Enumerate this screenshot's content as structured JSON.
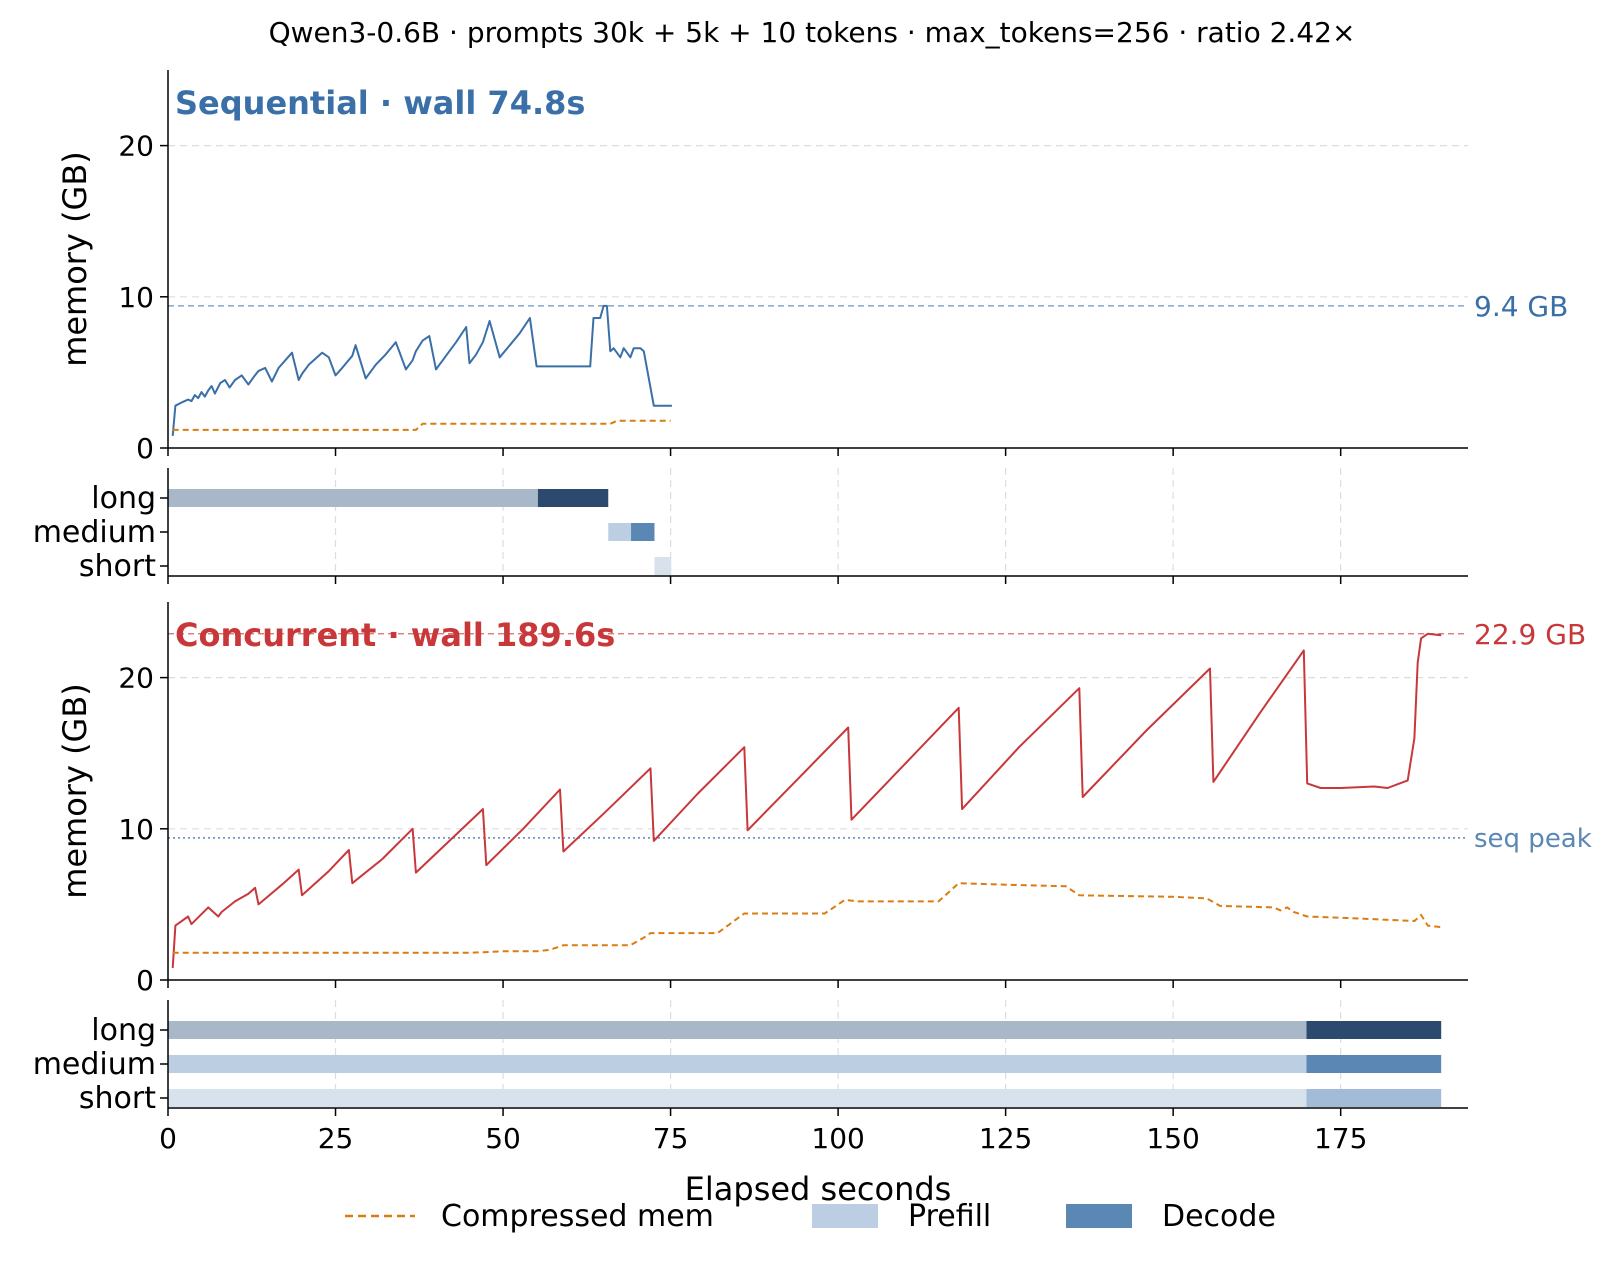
{
  "figure": {
    "title": "Qwen3-0.6B  ·  prompts 30k + 5k + 10 tokens  ·  max_tokens=256  ·  ratio 2.42×",
    "xlabel": "Elapsed seconds",
    "x_ticks": [
      0,
      25,
      50,
      75,
      100,
      125,
      150,
      175
    ],
    "xlim": [
      0,
      194
    ],
    "legend": [
      {
        "label": "Compressed mem",
        "style": "dashed",
        "color": "#d97d10"
      },
      {
        "label": "Prefill",
        "style": "patch",
        "color": "#bccfe2"
      },
      {
        "label": "Decode",
        "style": "patch",
        "color": "#5b87b5"
      }
    ],
    "colors": {
      "seq": "#3a6fa8",
      "conc": "#c8383a",
      "compressed": "#d97d10",
      "grid": "#dddddd",
      "peak_ref": "#5b87b5"
    }
  },
  "chart_data": [
    {
      "type": "line",
      "id": "sequential",
      "title": "Sequential  ·  wall 74.8s",
      "ylabel": "memory (GB)",
      "ylim": [
        0,
        25
      ],
      "y_ticks": [
        0,
        10,
        20
      ],
      "hline": {
        "value": 9.4,
        "label": "9.4 GB",
        "style": "dashed"
      },
      "series": [
        {
          "name": "",
          "role": "memory",
          "x": [
            0.7,
            1.1,
            2,
            3,
            3.5,
            4,
            4.5,
            5,
            5.5,
            6,
            6.5,
            7,
            7.8,
            8.5,
            9.2,
            10,
            11,
            12,
            12.8,
            13.5,
            14.5,
            15.5,
            16.5,
            17.5,
            18.5,
            19.5,
            20,
            21,
            22,
            23,
            24,
            25,
            26,
            27.5,
            28,
            29.5,
            31,
            32.5,
            34,
            35.5,
            36.5,
            37,
            38,
            39,
            40,
            41,
            42,
            43,
            44.5,
            45,
            46,
            47,
            48,
            49.5,
            51,
            52.5,
            54,
            55,
            55.5,
            56,
            57.5,
            59,
            60,
            61,
            62,
            63,
            63.5,
            64,
            64.5,
            65,
            65.5,
            66,
            66.5,
            67.5,
            68,
            69,
            69.5,
            70.5,
            71,
            72.5,
            73,
            73.8,
            75.2
          ],
          "y": [
            0.8,
            2.8,
            3.0,
            3.2,
            3.1,
            3.5,
            3.3,
            3.7,
            3.4,
            3.8,
            4.1,
            3.6,
            4.3,
            4.5,
            4.0,
            4.5,
            4.8,
            4.2,
            4.7,
            5.1,
            5.3,
            4.4,
            5.3,
            5.8,
            6.3,
            4.5,
            4.9,
            5.5,
            5.9,
            6.3,
            6.0,
            4.8,
            5.3,
            6.1,
            6.8,
            4.6,
            5.5,
            6.2,
            7.0,
            5.2,
            5.8,
            6.4,
            7.1,
            7.4,
            5.2,
            5.8,
            6.4,
            7.0,
            8.0,
            5.6,
            6.2,
            7.0,
            8.4,
            6.0,
            6.8,
            7.6,
            8.6,
            5.4,
            5.4,
            5.4,
            5.4,
            5.4,
            5.4,
            5.4,
            5.4,
            5.4,
            8.6,
            8.6,
            8.6,
            9.4,
            9.4,
            6.4,
            6.6,
            6.0,
            6.6,
            6.0,
            6.6,
            6.6,
            6.4,
            2.8,
            2.8,
            2.8,
            2.8
          ]
        },
        {
          "name": "",
          "role": "compressed",
          "x": [
            0.7,
            10,
            20,
            30,
            37,
            38,
            50,
            60,
            66,
            67,
            75
          ],
          "y": [
            1.2,
            1.2,
            1.2,
            1.2,
            1.2,
            1.6,
            1.6,
            1.6,
            1.6,
            1.8,
            1.8
          ]
        }
      ]
    },
    {
      "type": "bar",
      "id": "sequential_timeline",
      "categories": [
        "long",
        "medium",
        "short"
      ],
      "segments": [
        {
          "row": "long",
          "phase": "prefill",
          "start": 0,
          "end": 55.2
        },
        {
          "row": "long",
          "phase": "decode",
          "start": 55.2,
          "end": 65.7
        },
        {
          "row": "medium",
          "phase": "prefill",
          "start": 65.7,
          "end": 69.1
        },
        {
          "row": "medium",
          "phase": "decode",
          "start": 69.1,
          "end": 72.6
        },
        {
          "row": "short",
          "phase": "prefill",
          "start": 72.6,
          "end": 75.1
        }
      ]
    },
    {
      "type": "line",
      "id": "concurrent",
      "title": "Concurrent  ·  wall 189.6s",
      "ylabel": "memory (GB)",
      "ylim": [
        0,
        25
      ],
      "y_ticks": [
        0,
        10,
        20
      ],
      "hline": {
        "value": 22.9,
        "label": "22.9 GB",
        "style": "dashed"
      },
      "ref_line": {
        "value": 9.4,
        "label": "seq peak",
        "style": "dotted"
      },
      "series": [
        {
          "name": "",
          "role": "memory",
          "x": [
            0.7,
            1.1,
            3,
            3.5,
            6,
            7.5,
            8,
            10,
            12,
            13,
            13.5,
            17,
            19.5,
            20,
            24,
            27,
            27.5,
            32,
            36.5,
            37,
            42,
            47,
            47.5,
            53,
            58.5,
            59,
            65,
            72,
            72.5,
            79,
            86,
            86.5,
            94,
            101.5,
            102,
            110,
            118,
            118.5,
            127,
            136,
            136.5,
            146,
            155.5,
            156,
            163,
            169.5,
            170,
            172,
            175,
            180,
            182,
            185,
            186,
            186.5,
            187,
            188,
            190
          ],
          "y": [
            0.8,
            3.6,
            4.2,
            3.7,
            4.8,
            4.2,
            4.5,
            5.2,
            5.7,
            6.1,
            5.0,
            6.3,
            7.3,
            5.6,
            7.2,
            8.6,
            6.4,
            8.0,
            10.0,
            7.1,
            9.2,
            11.3,
            7.6,
            10.0,
            12.6,
            8.5,
            11.0,
            14.0,
            9.2,
            12.3,
            15.4,
            9.9,
            13.3,
            16.7,
            10.6,
            14.3,
            18.0,
            11.3,
            15.4,
            19.3,
            12.1,
            16.5,
            20.6,
            13.1,
            17.7,
            21.8,
            13.0,
            12.7,
            12.7,
            12.8,
            12.7,
            13.2,
            16.0,
            21.0,
            22.6,
            22.9,
            22.8
          ]
        },
        {
          "name": "",
          "role": "compressed",
          "x": [
            0.7,
            30,
            45,
            50,
            55,
            57,
            59,
            69,
            71,
            72,
            82,
            86,
            98,
            101,
            103,
            115,
            118,
            125,
            134,
            136,
            150,
            155,
            157,
            165,
            166,
            167,
            168,
            170,
            176,
            186,
            187,
            188,
            190
          ],
          "y": [
            1.8,
            1.8,
            1.8,
            1.9,
            1.9,
            2.0,
            2.3,
            2.3,
            2.8,
            3.1,
            3.1,
            4.4,
            4.4,
            5.3,
            5.2,
            5.2,
            6.4,
            6.3,
            6.2,
            5.6,
            5.5,
            5.4,
            4.9,
            4.8,
            4.6,
            4.8,
            4.5,
            4.2,
            4.1,
            3.9,
            4.3,
            3.6,
            3.5
          ]
        }
      ]
    },
    {
      "type": "bar",
      "id": "concurrent_timeline",
      "categories": [
        "long",
        "medium",
        "short"
      ],
      "segments": [
        {
          "row": "long",
          "phase": "prefill",
          "start": 0,
          "end": 169.9
        },
        {
          "row": "long",
          "phase": "decode",
          "start": 169.9,
          "end": 190
        },
        {
          "row": "medium",
          "phase": "prefill",
          "start": 0,
          "end": 169.9
        },
        {
          "row": "medium",
          "phase": "decode",
          "start": 169.9,
          "end": 190
        },
        {
          "row": "short",
          "phase": "prefill",
          "start": 0,
          "end": 169.9
        },
        {
          "row": "short",
          "phase": "decode",
          "start": 169.9,
          "end": 190
        }
      ]
    }
  ]
}
